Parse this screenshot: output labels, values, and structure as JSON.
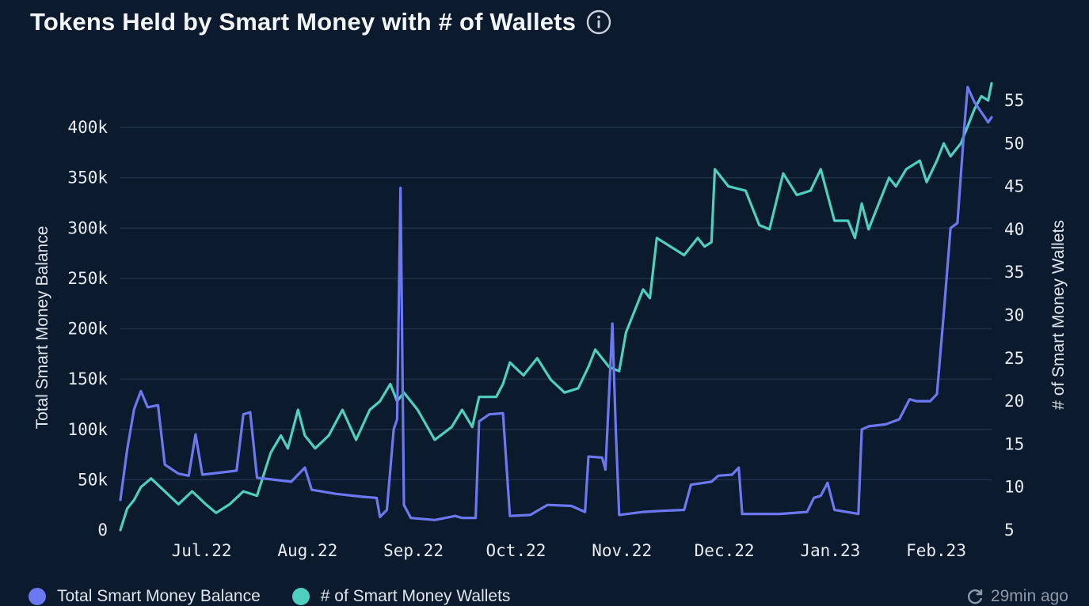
{
  "header": {
    "title": "Tokens Held by Smart Money with # of Wallets",
    "info_icon": "info-icon"
  },
  "legend": {
    "items": [
      {
        "label": "Total Smart Money Balance",
        "color": "#6b78f0"
      },
      {
        "label": "# of Smart Money Wallets",
        "color": "#4fcfc0"
      }
    ]
  },
  "footer": {
    "updated_text": "29min ago",
    "refresh_icon": "refresh-icon"
  },
  "colors": {
    "background": "#0b1a2c",
    "gridline": "#1f3247",
    "balance": "#6b78f0",
    "wallets": "#4fcfc0"
  },
  "chart_data": {
    "type": "line",
    "title": "Tokens Held by Smart Money with # of Wallets",
    "x_tick_labels": [
      "Jul.22",
      "Aug.22",
      "Sep.22",
      "Oct.22",
      "Nov.22",
      "Dec.22",
      "Jan.23",
      "Feb.23"
    ],
    "x_ticks": [
      "2022-07-01",
      "2022-08-01",
      "2022-09-01",
      "2022-10-01",
      "2022-11-01",
      "2022-12-01",
      "2023-01-01",
      "2023-02-01"
    ],
    "xlim": [
      "2022-06-10",
      "2023-02-20"
    ],
    "y_left": {
      "label": "Total Smart Money Balance",
      "ylim": [
        0,
        440000
      ],
      "ticks": [
        0,
        50000,
        100000,
        150000,
        200000,
        250000,
        300000,
        350000,
        400000
      ],
      "tick_labels": [
        "0",
        "50k",
        "100k",
        "150k",
        "200k",
        "250k",
        "300k",
        "350k",
        "400k"
      ]
    },
    "y_right": {
      "label": "# of Smart Money Wallets",
      "ylim": [
        5,
        57
      ],
      "ticks": [
        5,
        10,
        15,
        20,
        25,
        30,
        35,
        40,
        45,
        50,
        55
      ],
      "tick_labels": [
        "5",
        "10",
        "15",
        "20",
        "25",
        "30",
        "35",
        "40",
        "45",
        "50",
        "55"
      ]
    },
    "grid": true,
    "legend_position": "bottom-left",
    "series": [
      {
        "name": "Total Smart Money Balance",
        "axis": "left",
        "color": "#6b78f0",
        "points": [
          [
            "2022-06-10",
            30000
          ],
          [
            "2022-06-12",
            80000
          ],
          [
            "2022-06-14",
            120000
          ],
          [
            "2022-06-16",
            138000
          ],
          [
            "2022-06-18",
            122000
          ],
          [
            "2022-06-21",
            124000
          ],
          [
            "2022-06-23",
            65000
          ],
          [
            "2022-06-27",
            56000
          ],
          [
            "2022-06-30",
            54000
          ],
          [
            "2022-07-02",
            95000
          ],
          [
            "2022-07-04",
            55000
          ],
          [
            "2022-07-09",
            57000
          ],
          [
            "2022-07-14",
            59000
          ],
          [
            "2022-07-16",
            115000
          ],
          [
            "2022-07-18",
            117000
          ],
          [
            "2022-07-20",
            52000
          ],
          [
            "2022-07-25",
            50000
          ],
          [
            "2022-07-30",
            48000
          ],
          [
            "2022-08-03",
            62000
          ],
          [
            "2022-08-05",
            40000
          ],
          [
            "2022-08-12",
            36000
          ],
          [
            "2022-08-20",
            33000
          ],
          [
            "2022-08-24",
            32000
          ],
          [
            "2022-08-25",
            13000
          ],
          [
            "2022-08-27",
            20000
          ],
          [
            "2022-08-29",
            100000
          ],
          [
            "2022-08-30",
            110000
          ],
          [
            "2022-08-31",
            340000
          ],
          [
            "2022-09-01",
            25000
          ],
          [
            "2022-09-03",
            12000
          ],
          [
            "2022-09-10",
            10000
          ],
          [
            "2022-09-16",
            14000
          ],
          [
            "2022-09-18",
            12000
          ],
          [
            "2022-09-22",
            12000
          ],
          [
            "2022-09-23",
            108000
          ],
          [
            "2022-09-26",
            115000
          ],
          [
            "2022-09-30",
            116000
          ],
          [
            "2022-10-02",
            14000
          ],
          [
            "2022-10-08",
            15000
          ],
          [
            "2022-10-13",
            25000
          ],
          [
            "2022-10-20",
            24000
          ],
          [
            "2022-10-24",
            18000
          ],
          [
            "2022-10-25",
            73000
          ],
          [
            "2022-10-29",
            72000
          ],
          [
            "2022-10-30",
            60000
          ],
          [
            "2022-11-01",
            205000
          ],
          [
            "2022-11-02",
            100000
          ],
          [
            "2022-11-03",
            15000
          ],
          [
            "2022-11-10",
            18000
          ],
          [
            "2022-11-15",
            19000
          ],
          [
            "2022-11-22",
            20000
          ],
          [
            "2022-11-24",
            45000
          ],
          [
            "2022-11-30",
            48000
          ],
          [
            "2022-12-02",
            54000
          ],
          [
            "2022-12-06",
            55000
          ],
          [
            "2022-12-08",
            62000
          ],
          [
            "2022-12-09",
            16000
          ],
          [
            "2022-12-20",
            16000
          ],
          [
            "2022-12-28",
            18000
          ],
          [
            "2022-12-30",
            32000
          ],
          [
            "2023-01-01",
            34000
          ],
          [
            "2023-01-03",
            47000
          ],
          [
            "2023-01-05",
            20000
          ],
          [
            "2023-01-12",
            16000
          ],
          [
            "2023-01-13",
            100000
          ],
          [
            "2023-01-15",
            103000
          ],
          [
            "2023-01-20",
            105000
          ],
          [
            "2023-01-24",
            110000
          ],
          [
            "2023-01-27",
            130000
          ],
          [
            "2023-01-29",
            128000
          ],
          [
            "2023-02-02",
            128000
          ],
          [
            "2023-02-04",
            135000
          ],
          [
            "2023-02-06",
            215000
          ],
          [
            "2023-02-08",
            300000
          ],
          [
            "2023-02-10",
            305000
          ],
          [
            "2023-02-12",
            400000
          ],
          [
            "2023-02-13",
            440000
          ],
          [
            "2023-02-15",
            425000
          ],
          [
            "2023-02-17",
            415000
          ],
          [
            "2023-02-19",
            405000
          ],
          [
            "2023-02-20",
            410000
          ]
        ]
      },
      {
        "name": "# of Smart Money Wallets",
        "axis": "right",
        "color": "#4fcfc0",
        "points": [
          [
            "2022-06-10",
            5
          ],
          [
            "2022-06-12",
            7.5
          ],
          [
            "2022-06-14",
            8.5
          ],
          [
            "2022-06-16",
            10
          ],
          [
            "2022-06-19",
            11
          ],
          [
            "2022-06-23",
            9.5
          ],
          [
            "2022-06-27",
            8
          ],
          [
            "2022-07-01",
            9.5
          ],
          [
            "2022-07-05",
            8
          ],
          [
            "2022-07-08",
            7
          ],
          [
            "2022-07-12",
            8
          ],
          [
            "2022-07-16",
            9.5
          ],
          [
            "2022-07-20",
            9
          ],
          [
            "2022-07-24",
            14
          ],
          [
            "2022-07-27",
            16
          ],
          [
            "2022-07-29",
            14.5
          ],
          [
            "2022-08-01",
            19
          ],
          [
            "2022-08-03",
            16
          ],
          [
            "2022-08-06",
            14.5
          ],
          [
            "2022-08-10",
            16
          ],
          [
            "2022-08-14",
            19
          ],
          [
            "2022-08-18",
            15.5
          ],
          [
            "2022-08-22",
            19
          ],
          [
            "2022-08-25",
            20
          ],
          [
            "2022-08-28",
            22
          ],
          [
            "2022-08-30",
            20
          ],
          [
            "2022-09-01",
            21
          ],
          [
            "2022-09-05",
            19
          ],
          [
            "2022-09-10",
            15.5
          ],
          [
            "2022-09-15",
            17
          ],
          [
            "2022-09-18",
            19
          ],
          [
            "2022-09-21",
            17
          ],
          [
            "2022-09-23",
            20.5
          ],
          [
            "2022-09-28",
            20.5
          ],
          [
            "2022-09-30",
            22
          ],
          [
            "2022-10-02",
            24.5
          ],
          [
            "2022-10-06",
            23
          ],
          [
            "2022-10-10",
            25
          ],
          [
            "2022-10-14",
            22.5
          ],
          [
            "2022-10-18",
            21
          ],
          [
            "2022-10-22",
            21.5
          ],
          [
            "2022-10-25",
            24
          ],
          [
            "2022-10-27",
            26
          ],
          [
            "2022-10-31",
            24
          ],
          [
            "2022-11-03",
            23.5
          ],
          [
            "2022-11-05",
            28
          ],
          [
            "2022-11-08",
            31
          ],
          [
            "2022-11-10",
            33
          ],
          [
            "2022-11-12",
            32
          ],
          [
            "2022-11-14",
            39
          ],
          [
            "2022-11-18",
            38
          ],
          [
            "2022-11-22",
            37
          ],
          [
            "2022-11-26",
            39
          ],
          [
            "2022-11-28",
            38
          ],
          [
            "2022-11-30",
            38.5
          ],
          [
            "2022-12-01",
            47
          ],
          [
            "2022-12-05",
            45
          ],
          [
            "2022-12-10",
            44.5
          ],
          [
            "2022-12-14",
            40.5
          ],
          [
            "2022-12-17",
            40
          ],
          [
            "2022-12-21",
            46.5
          ],
          [
            "2022-12-25",
            44
          ],
          [
            "2022-12-29",
            44.5
          ],
          [
            "2023-01-01",
            47
          ],
          [
            "2023-01-05",
            41
          ],
          [
            "2023-01-09",
            41
          ],
          [
            "2023-01-11",
            39
          ],
          [
            "2023-01-13",
            43
          ],
          [
            "2023-01-15",
            40
          ],
          [
            "2023-01-18",
            43
          ],
          [
            "2023-01-21",
            46
          ],
          [
            "2023-01-23",
            45
          ],
          [
            "2023-01-26",
            47
          ],
          [
            "2023-01-30",
            48
          ],
          [
            "2023-02-01",
            45.5
          ],
          [
            "2023-02-04",
            48
          ],
          [
            "2023-02-06",
            50
          ],
          [
            "2023-02-08",
            48.5
          ],
          [
            "2023-02-11",
            50
          ],
          [
            "2023-02-13",
            52
          ],
          [
            "2023-02-15",
            54
          ],
          [
            "2023-02-17",
            55.5
          ],
          [
            "2023-02-19",
            55
          ],
          [
            "2023-02-20",
            57
          ]
        ]
      }
    ]
  }
}
